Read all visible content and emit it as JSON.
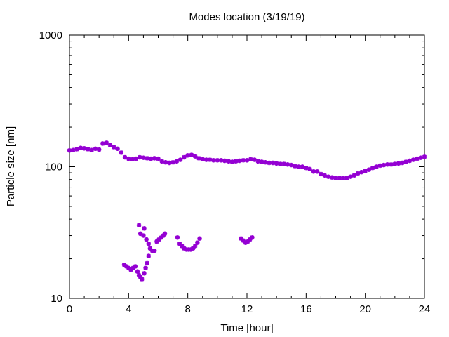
{
  "chart_data": {
    "type": "scatter",
    "title": "Modes location (3/19/19)",
    "xlabel": "Time [hour]",
    "ylabel": "Particle size [nm]",
    "xlim": [
      0,
      24
    ],
    "ylim": [
      10,
      1000
    ],
    "yscale": "log",
    "x_ticks": [
      0,
      4,
      8,
      12,
      16,
      20,
      24
    ],
    "x_tick_labels": [
      "0",
      "4",
      "8",
      "12",
      "16",
      "20",
      "24"
    ],
    "y_ticks": [
      10,
      100,
      1000
    ],
    "y_tick_labels": [
      "10",
      "100",
      "1000"
    ],
    "grid": false,
    "legend": "none",
    "marker": "star",
    "color": "#9400d3",
    "series": [
      {
        "values": [
          {
            "x": 0.0,
            "y": 133
          },
          {
            "x": 0.25,
            "y": 134
          },
          {
            "x": 0.5,
            "y": 136
          },
          {
            "x": 0.75,
            "y": 139
          },
          {
            "x": 1.0,
            "y": 138
          },
          {
            "x": 1.25,
            "y": 136
          },
          {
            "x": 1.5,
            "y": 134
          },
          {
            "x": 1.75,
            "y": 137
          },
          {
            "x": 2.0,
            "y": 135
          },
          {
            "x": 2.25,
            "y": 150
          },
          {
            "x": 2.5,
            "y": 152
          },
          {
            "x": 2.75,
            "y": 146
          },
          {
            "x": 3.0,
            "y": 141
          },
          {
            "x": 3.25,
            "y": 137
          },
          {
            "x": 3.5,
            "y": 128
          },
          {
            "x": 3.75,
            "y": 118
          },
          {
            "x": 4.0,
            "y": 115
          },
          {
            "x": 4.25,
            "y": 114
          },
          {
            "x": 4.5,
            "y": 115
          },
          {
            "x": 4.75,
            "y": 118
          },
          {
            "x": 5.0,
            "y": 117
          },
          {
            "x": 5.25,
            "y": 116
          },
          {
            "x": 5.5,
            "y": 115
          },
          {
            "x": 5.75,
            "y": 116
          },
          {
            "x": 6.0,
            "y": 115
          },
          {
            "x": 6.25,
            "y": 110
          },
          {
            "x": 6.5,
            "y": 108
          },
          {
            "x": 6.75,
            "y": 107
          },
          {
            "x": 7.0,
            "y": 108
          },
          {
            "x": 7.25,
            "y": 110
          },
          {
            "x": 7.5,
            "y": 113
          },
          {
            "x": 7.75,
            "y": 118
          },
          {
            "x": 8.0,
            "y": 122
          },
          {
            "x": 8.25,
            "y": 123
          },
          {
            "x": 8.5,
            "y": 120
          },
          {
            "x": 8.75,
            "y": 116
          },
          {
            "x": 9.0,
            "y": 114
          },
          {
            "x": 9.25,
            "y": 113
          },
          {
            "x": 9.5,
            "y": 113
          },
          {
            "x": 9.75,
            "y": 112
          },
          {
            "x": 10.0,
            "y": 112
          },
          {
            "x": 10.25,
            "y": 112
          },
          {
            "x": 10.5,
            "y": 111
          },
          {
            "x": 10.75,
            "y": 110
          },
          {
            "x": 11.0,
            "y": 109
          },
          {
            "x": 11.25,
            "y": 110
          },
          {
            "x": 11.5,
            "y": 111
          },
          {
            "x": 11.75,
            "y": 112
          },
          {
            "x": 12.0,
            "y": 112
          },
          {
            "x": 12.25,
            "y": 114
          },
          {
            "x": 12.5,
            "y": 113
          },
          {
            "x": 12.75,
            "y": 110
          },
          {
            "x": 13.0,
            "y": 109
          },
          {
            "x": 13.25,
            "y": 108
          },
          {
            "x": 13.5,
            "y": 107
          },
          {
            "x": 13.75,
            "y": 107
          },
          {
            "x": 14.0,
            "y": 106
          },
          {
            "x": 14.25,
            "y": 105
          },
          {
            "x": 14.5,
            "y": 105
          },
          {
            "x": 14.75,
            "y": 104
          },
          {
            "x": 15.0,
            "y": 103
          },
          {
            "x": 15.25,
            "y": 101
          },
          {
            "x": 15.5,
            "y": 100
          },
          {
            "x": 15.75,
            "y": 100
          },
          {
            "x": 16.0,
            "y": 98
          },
          {
            "x": 16.25,
            "y": 96
          },
          {
            "x": 16.5,
            "y": 92
          },
          {
            "x": 16.75,
            "y": 92
          },
          {
            "x": 17.0,
            "y": 88
          },
          {
            "x": 17.25,
            "y": 86
          },
          {
            "x": 17.5,
            "y": 84
          },
          {
            "x": 17.75,
            "y": 83
          },
          {
            "x": 18.0,
            "y": 82
          },
          {
            "x": 18.25,
            "y": 82
          },
          {
            "x": 18.5,
            "y": 82
          },
          {
            "x": 18.75,
            "y": 82
          },
          {
            "x": 19.0,
            "y": 84
          },
          {
            "x": 19.25,
            "y": 86
          },
          {
            "x": 19.5,
            "y": 89
          },
          {
            "x": 19.75,
            "y": 91
          },
          {
            "x": 20.0,
            "y": 93
          },
          {
            "x": 20.25,
            "y": 95
          },
          {
            "x": 20.5,
            "y": 98
          },
          {
            "x": 20.75,
            "y": 100
          },
          {
            "x": 21.0,
            "y": 102
          },
          {
            "x": 21.25,
            "y": 103
          },
          {
            "x": 21.5,
            "y": 104
          },
          {
            "x": 21.75,
            "y": 104
          },
          {
            "x": 22.0,
            "y": 105
          },
          {
            "x": 22.25,
            "y": 106
          },
          {
            "x": 22.5,
            "y": 107
          },
          {
            "x": 22.75,
            "y": 109
          },
          {
            "x": 23.0,
            "y": 111
          },
          {
            "x": 23.25,
            "y": 113
          },
          {
            "x": 23.5,
            "y": 115
          },
          {
            "x": 23.75,
            "y": 117
          },
          {
            "x": 24.0,
            "y": 119
          }
        ]
      },
      {
        "values": [
          {
            "x": 3.7,
            "y": 18
          },
          {
            "x": 3.85,
            "y": 17.5
          },
          {
            "x": 4.0,
            "y": 17
          },
          {
            "x": 4.15,
            "y": 16.5
          },
          {
            "x": 4.3,
            "y": 17
          },
          {
            "x": 4.45,
            "y": 17.5
          },
          {
            "x": 4.6,
            "y": 16
          },
          {
            "x": 4.7,
            "y": 15
          },
          {
            "x": 4.8,
            "y": 14.5
          },
          {
            "x": 4.9,
            "y": 14
          },
          {
            "x": 5.05,
            "y": 15.5
          },
          {
            "x": 5.15,
            "y": 17
          },
          {
            "x": 5.25,
            "y": 18.5
          },
          {
            "x": 5.35,
            "y": 21
          }
        ]
      },
      {
        "values": [
          {
            "x": 4.7,
            "y": 36
          },
          {
            "x": 4.8,
            "y": 31
          },
          {
            "x": 5.0,
            "y": 30
          },
          {
            "x": 5.05,
            "y": 34
          },
          {
            "x": 5.2,
            "y": 28
          },
          {
            "x": 5.35,
            "y": 26
          },
          {
            "x": 5.45,
            "y": 24
          },
          {
            "x": 5.6,
            "y": 23
          },
          {
            "x": 5.75,
            "y": 23
          },
          {
            "x": 5.9,
            "y": 27
          },
          {
            "x": 6.05,
            "y": 28
          },
          {
            "x": 6.2,
            "y": 29
          },
          {
            "x": 6.35,
            "y": 30
          },
          {
            "x": 6.45,
            "y": 31
          }
        ]
      },
      {
        "values": [
          {
            "x": 7.3,
            "y": 29
          },
          {
            "x": 7.45,
            "y": 26
          },
          {
            "x": 7.6,
            "y": 25
          },
          {
            "x": 7.75,
            "y": 24
          },
          {
            "x": 7.9,
            "y": 23.5
          },
          {
            "x": 8.05,
            "y": 23.5
          },
          {
            "x": 8.2,
            "y": 23.5
          },
          {
            "x": 8.35,
            "y": 24
          },
          {
            "x": 8.5,
            "y": 25
          },
          {
            "x": 8.65,
            "y": 26.5
          },
          {
            "x": 8.8,
            "y": 28.5
          }
        ]
      },
      {
        "values": [
          {
            "x": 11.6,
            "y": 28.5
          },
          {
            "x": 11.75,
            "y": 27.5
          },
          {
            "x": 11.9,
            "y": 26.5
          },
          {
            "x": 12.05,
            "y": 27
          },
          {
            "x": 12.2,
            "y": 28
          },
          {
            "x": 12.35,
            "y": 29
          }
        ]
      }
    ]
  }
}
